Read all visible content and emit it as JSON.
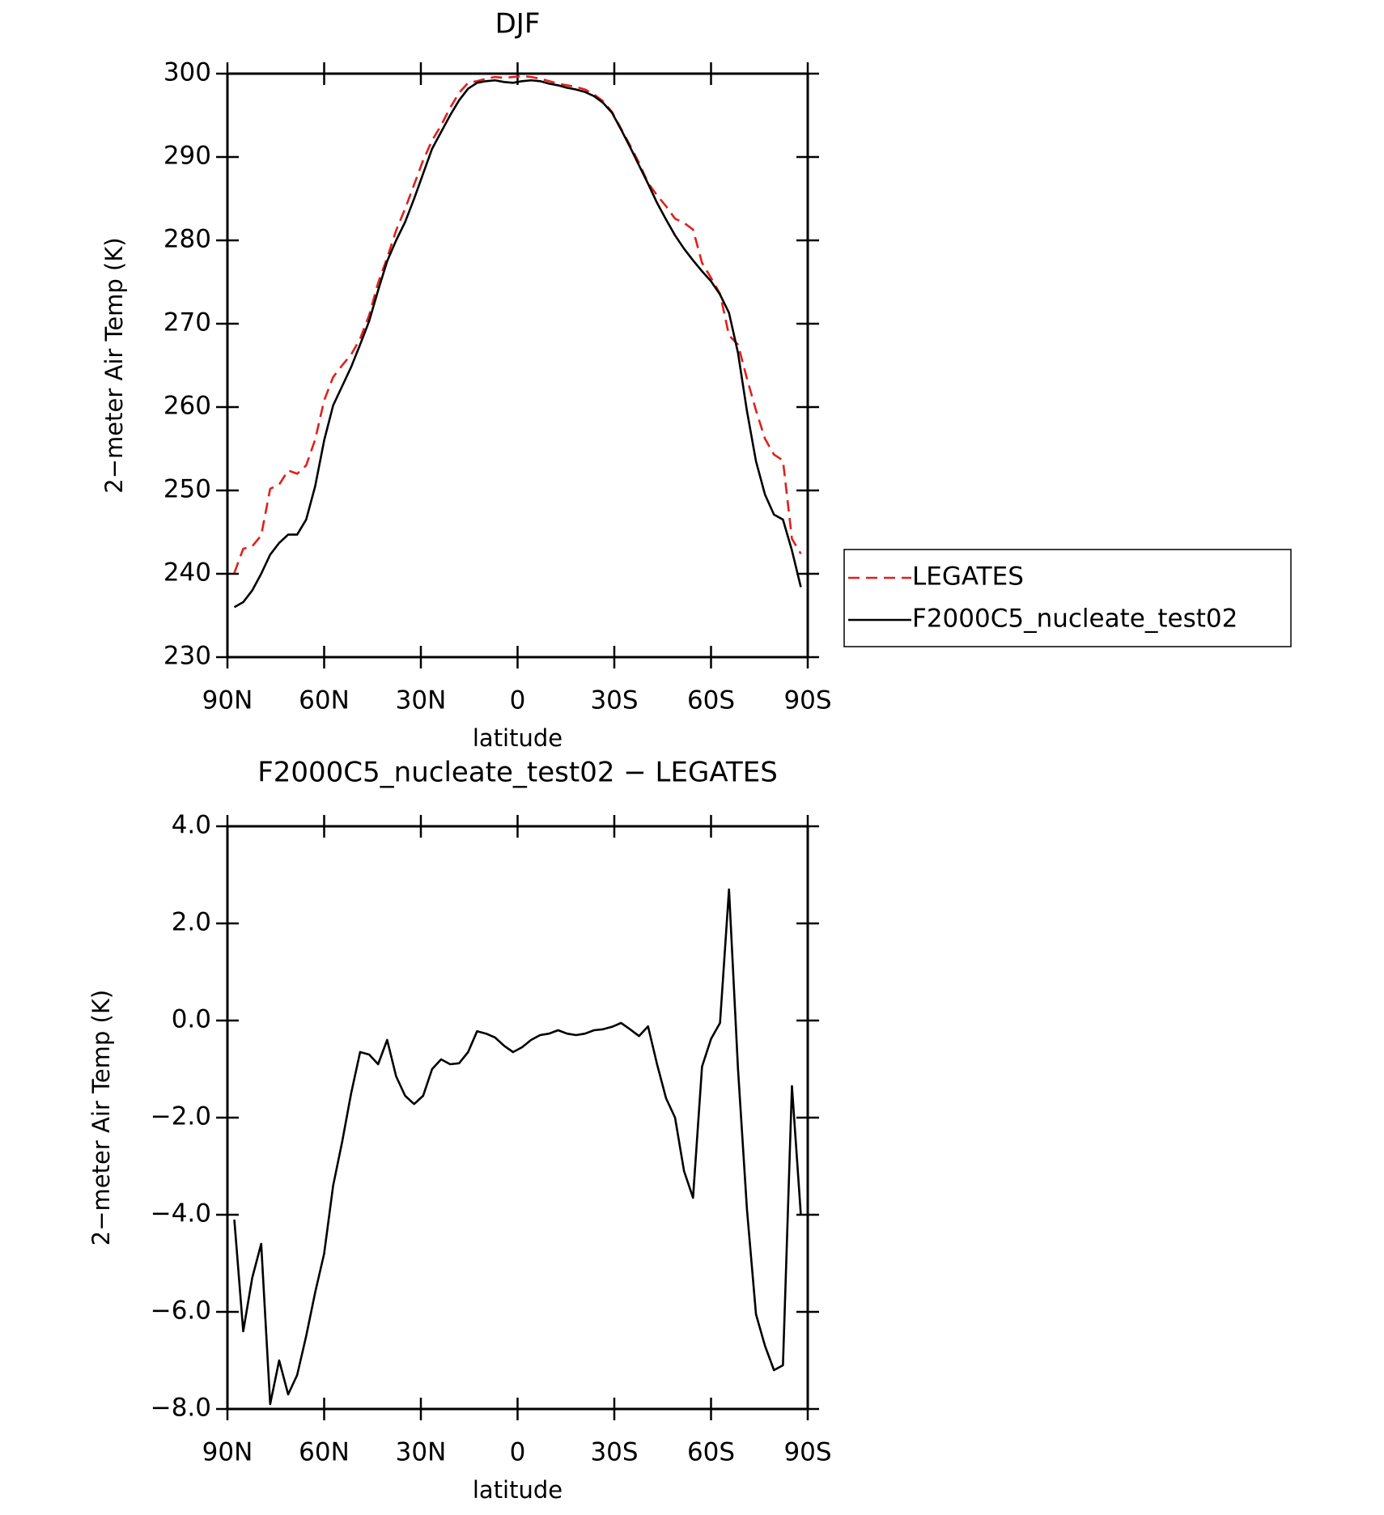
{
  "chart_data": [
    {
      "type": "line",
      "title": "DJF",
      "xlabel": "latitude",
      "ylabel": "2−meter Air Temp (K)",
      "x": [
        87.86,
        85.1,
        82.31,
        79.53,
        76.74,
        73.95,
        71.16,
        68.37,
        65.58,
        62.79,
        60.0,
        57.21,
        54.42,
        51.63,
        48.84,
        46.05,
        43.26,
        40.46,
        37.67,
        34.88,
        32.09,
        29.3,
        26.51,
        23.72,
        20.93,
        18.14,
        15.35,
        12.56,
        9.77,
        6.98,
        4.19,
        1.4,
        -1.4,
        -4.19,
        -6.98,
        -9.77,
        -12.56,
        -15.35,
        -18.14,
        -20.93,
        -23.72,
        -26.51,
        -29.3,
        -32.09,
        -34.88,
        -37.67,
        -40.46,
        -43.26,
        -46.05,
        -48.84,
        -51.63,
        -54.42,
        -57.21,
        -60.0,
        -62.79,
        -65.58,
        -68.37,
        -71.16,
        -73.95,
        -76.74,
        -79.53,
        -82.31,
        -85.1,
        -87.86
      ],
      "series": [
        {
          "name": "LEGATES",
          "color": "#e0201b",
          "linestyle": "dashed",
          "values": [
            240.1,
            243.0,
            243.3,
            244.6,
            250.2,
            250.7,
            252.4,
            252.0,
            253.0,
            256.1,
            260.8,
            263.6,
            265.0,
            266.3,
            268.2,
            271.0,
            274.9,
            277.9,
            281.2,
            283.8,
            286.7,
            289.6,
            292.0,
            293.8,
            295.9,
            297.7,
            298.9,
            299.1,
            299.4,
            299.6,
            299.5,
            299.6,
            299.7,
            299.6,
            299.4,
            299.1,
            298.8,
            298.6,
            298.4,
            298.1,
            297.5,
            296.7,
            295.4,
            293.4,
            291.4,
            289.3,
            286.9,
            285.4,
            284.1,
            282.6,
            282.1,
            281.3,
            277.3,
            275.5,
            273.6,
            268.6,
            267.5,
            263.4,
            259.6,
            256.2,
            254.3,
            253.6,
            244.2,
            242.4
          ]
        },
        {
          "name": "F2000C5_nucleate_test02",
          "color": "#000000",
          "linestyle": "solid",
          "values": [
            236.0,
            236.6,
            238.0,
            240.0,
            242.3,
            243.7,
            244.7,
            244.7,
            246.5,
            250.5,
            256.0,
            260.2,
            262.5,
            264.8,
            267.5,
            270.3,
            274.0,
            277.5,
            280.0,
            282.2,
            285.0,
            288.0,
            291.0,
            293.0,
            295.0,
            296.8,
            298.2,
            298.9,
            299.1,
            299.2,
            299.0,
            298.9,
            299.1,
            299.2,
            299.1,
            298.8,
            298.6,
            298.3,
            298.1,
            297.8,
            297.3,
            296.5,
            295.3,
            293.3,
            291.2,
            289.0,
            286.8,
            284.5,
            282.5,
            280.6,
            279.0,
            277.6,
            276.3,
            275.1,
            273.5,
            271.3,
            266.5,
            259.5,
            253.5,
            249.5,
            247.1,
            246.5,
            242.8,
            238.4
          ]
        }
      ],
      "xlim": [
        90,
        -90
      ],
      "xticks": [
        {
          "value": 90,
          "label": "90N"
        },
        {
          "value": 60,
          "label": "60N"
        },
        {
          "value": 30,
          "label": "30N"
        },
        0,
        {
          "value": -30,
          "label": "30S"
        },
        {
          "value": -60,
          "label": "60S"
        },
        {
          "value": -90,
          "label": "90S"
        }
      ],
      "ylim": [
        230,
        300
      ],
      "yticks": [
        230,
        240,
        250,
        260,
        270,
        280,
        290,
        300
      ]
    },
    {
      "type": "line",
      "title": "F2000C5_nucleate_test02 − LEGATES",
      "xlabel": "latitude",
      "ylabel": "2−meter Air Temp (K)",
      "x": [
        87.86,
        85.1,
        82.31,
        79.53,
        76.74,
        73.95,
        71.16,
        68.37,
        65.58,
        62.79,
        60.0,
        57.21,
        54.42,
        51.63,
        48.84,
        46.05,
        43.26,
        40.46,
        37.67,
        34.88,
        32.09,
        29.3,
        26.51,
        23.72,
        20.93,
        18.14,
        15.35,
        12.56,
        9.77,
        6.98,
        4.19,
        1.4,
        -1.4,
        -4.19,
        -6.98,
        -9.77,
        -12.56,
        -15.35,
        -18.14,
        -20.93,
        -23.72,
        -26.51,
        -29.3,
        -32.09,
        -34.88,
        -37.67,
        -40.46,
        -43.26,
        -46.05,
        -48.84,
        -51.63,
        -54.42,
        -57.21,
        -60.0,
        -62.79,
        -65.58,
        -68.37,
        -71.16,
        -73.95,
        -76.74,
        -79.53,
        -82.31,
        -85.1,
        -87.86
      ],
      "values": [
        -4.1,
        -6.4,
        -5.3,
        -4.6,
        -7.9,
        -7.0,
        -7.7,
        -7.3,
        -6.5,
        -5.6,
        -4.8,
        -3.4,
        -2.5,
        -1.5,
        -0.65,
        -0.7,
        -0.9,
        -0.4,
        -1.15,
        -1.55,
        -1.72,
        -1.55,
        -1.0,
        -0.8,
        -0.9,
        -0.88,
        -0.65,
        -0.22,
        -0.27,
        -0.35,
        -0.52,
        -0.65,
        -0.55,
        -0.4,
        -0.3,
        -0.27,
        -0.2,
        -0.27,
        -0.3,
        -0.27,
        -0.2,
        -0.18,
        -0.13,
        -0.05,
        -0.18,
        -0.32,
        -0.12,
        -0.9,
        -1.6,
        -2.0,
        -3.1,
        -3.65,
        -0.95,
        -0.38,
        -0.05,
        2.7,
        -1.0,
        -3.9,
        -6.05,
        -6.7,
        -7.2,
        -7.1,
        -1.35,
        -4.0
      ],
      "color": "#000000",
      "xlim": [
        90,
        -90
      ],
      "xticks": [
        {
          "value": 90,
          "label": "90N"
        },
        {
          "value": 60,
          "label": "60N"
        },
        {
          "value": 30,
          "label": "30N"
        },
        0,
        {
          "value": -30,
          "label": "30S"
        },
        {
          "value": -60,
          "label": "60S"
        },
        {
          "value": -90,
          "label": "90S"
        }
      ],
      "ylim": [
        -8,
        4
      ],
      "yticks": [
        {
          "value": -8,
          "label": "−8.0"
        },
        {
          "value": -6,
          "label": "−6.0"
        },
        {
          "value": -4,
          "label": "−4.0"
        },
        {
          "value": -2,
          "label": "−2.0"
        },
        {
          "value": 0,
          "label": "0.0"
        },
        {
          "value": 2,
          "label": "2.0"
        },
        {
          "value": 4,
          "label": "4.0"
        }
      ]
    }
  ]
}
